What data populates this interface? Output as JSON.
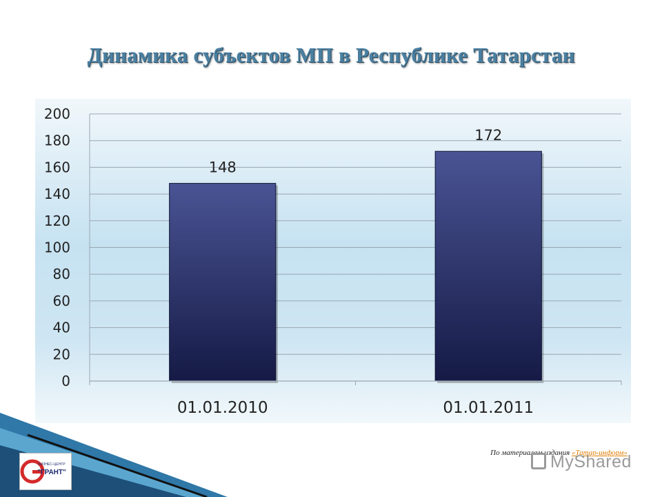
{
  "slide": {
    "title": "Динамика субъектов МП в Республике Татарстан",
    "source_prefix": "По материалам издания ",
    "source_link": "«Татар-информ»",
    "watermark": "MyShared",
    "logo": {
      "small_text": "БИЗНЕС-ЦЕНТР",
      "name": "\"ГРАНТ\""
    }
  },
  "colors": {
    "title": "#4a7fa0",
    "bar_top": "#4a5494",
    "bar_bottom": "#151a45",
    "grid": "#9aa6b2",
    "axis_text": "#222222",
    "logo_red": "#d42a2a",
    "logo_navy": "#1f2b6e",
    "deco_blue": "#2f78a8"
  },
  "chart_data": {
    "type": "bar",
    "categories": [
      "01.01.2010",
      "01.01.2011"
    ],
    "values": [
      148,
      172
    ],
    "data_labels": [
      "148",
      "172"
    ],
    "title": "",
    "xlabel": "",
    "ylabel": "",
    "ylim": [
      0,
      200
    ],
    "yticks": [
      0,
      20,
      40,
      60,
      80,
      100,
      120,
      140,
      160,
      180,
      200
    ],
    "grid": true,
    "legend": "none"
  }
}
